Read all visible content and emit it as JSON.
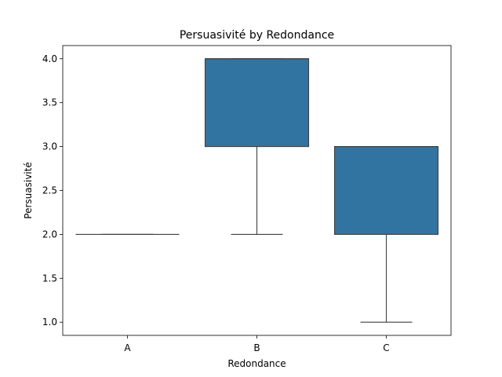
{
  "chart_data": {
    "type": "box",
    "title": "Persuasivité by Redondance",
    "xlabel": "Redondance",
    "ylabel": "Persuasivité",
    "ylim": [
      0.85,
      4.15
    ],
    "yticks": [
      "1.0",
      "1.5",
      "2.0",
      "2.5",
      "3.0",
      "3.5",
      "4.0"
    ],
    "categories": [
      "A",
      "B",
      "C"
    ],
    "boxes": [
      {
        "category": "A",
        "whisker_low": 2.0,
        "q1": 2.0,
        "median": 2.0,
        "q3": 2.0,
        "whisker_high": 2.0
      },
      {
        "category": "B",
        "whisker_low": 2.0,
        "q1": 3.0,
        "median": 4.0,
        "q3": 4.0,
        "whisker_high": 4.0
      },
      {
        "category": "C",
        "whisker_low": 1.0,
        "q1": 2.0,
        "median": 3.0,
        "q3": 3.0,
        "whisker_high": 3.0
      }
    ],
    "box_color": "#3274a1",
    "line_color": "#3f3f3f",
    "grid": false
  }
}
